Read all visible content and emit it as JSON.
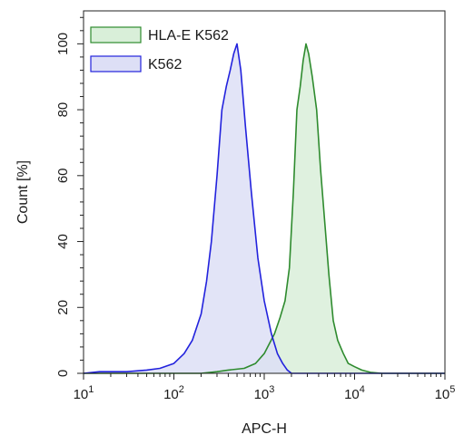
{
  "chart_data": {
    "type": "area",
    "title": "",
    "xlabel": "APC-H",
    "ylabel": "Count [%]",
    "x_scale": "log",
    "xlim": [
      10,
      100000
    ],
    "ylim": [
      0,
      110
    ],
    "x_ticks": [
      {
        "value": 10,
        "base": "10",
        "exp": "1"
      },
      {
        "value": 100,
        "base": "10",
        "exp": "2"
      },
      {
        "value": 1000,
        "base": "10",
        "exp": "3"
      },
      {
        "value": 10000,
        "base": "10",
        "exp": "4"
      },
      {
        "value": 100000,
        "base": "10",
        "exp": "5"
      }
    ],
    "y_ticks": [
      "0",
      "20",
      "40",
      "60",
      "80",
      "100"
    ],
    "grid": false,
    "legend_position": "top-left",
    "series": [
      {
        "name": "HLA-E K562",
        "color": "#2e8b2e",
        "fill": "#d9efd9",
        "points": [
          [
            10,
            0
          ],
          [
            200,
            0
          ],
          [
            300,
            0.5
          ],
          [
            400,
            1
          ],
          [
            600,
            1.5
          ],
          [
            800,
            3
          ],
          [
            1000,
            6
          ],
          [
            1300,
            12
          ],
          [
            1500,
            17
          ],
          [
            1700,
            22
          ],
          [
            1900,
            32
          ],
          [
            2100,
            55
          ],
          [
            2300,
            80
          ],
          [
            2500,
            87
          ],
          [
            2700,
            95
          ],
          [
            2900,
            100
          ],
          [
            3100,
            97
          ],
          [
            3400,
            90
          ],
          [
            3800,
            80
          ],
          [
            4200,
            62
          ],
          [
            4700,
            45
          ],
          [
            5200,
            30
          ],
          [
            5800,
            16
          ],
          [
            6500,
            10
          ],
          [
            7500,
            6
          ],
          [
            8500,
            3
          ],
          [
            10000,
            2
          ],
          [
            12000,
            1
          ],
          [
            15000,
            0.3
          ],
          [
            20000,
            0
          ],
          [
            100000,
            0
          ]
        ]
      },
      {
        "name": "K562",
        "color": "#2222dd",
        "fill": "#dddff6",
        "points": [
          [
            10,
            0
          ],
          [
            15,
            0.5
          ],
          [
            20,
            0.5
          ],
          [
            30,
            0.5
          ],
          [
            50,
            1
          ],
          [
            70,
            1.5
          ],
          [
            100,
            3
          ],
          [
            130,
            6
          ],
          [
            160,
            10
          ],
          [
            200,
            18
          ],
          [
            230,
            28
          ],
          [
            260,
            40
          ],
          [
            300,
            60
          ],
          [
            340,
            80
          ],
          [
            380,
            87
          ],
          [
            420,
            92
          ],
          [
            460,
            97
          ],
          [
            500,
            100
          ],
          [
            550,
            92
          ],
          [
            620,
            75
          ],
          [
            720,
            55
          ],
          [
            850,
            35
          ],
          [
            1000,
            22
          ],
          [
            1200,
            12
          ],
          [
            1400,
            6
          ],
          [
            1600,
            3
          ],
          [
            1800,
            1
          ],
          [
            2000,
            0
          ],
          [
            100000,
            0
          ]
        ]
      }
    ]
  }
}
